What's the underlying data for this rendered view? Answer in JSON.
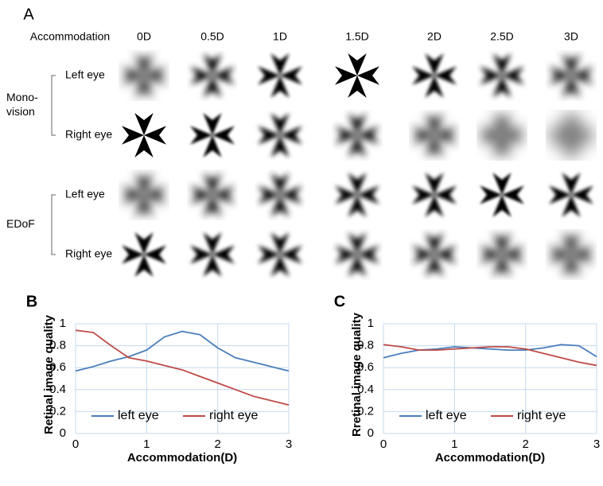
{
  "panel_a": {
    "panel": "A",
    "header": "Accommodation",
    "columns": [
      "0D",
      "0.5D",
      "1D",
      "1.5D",
      "2D",
      "2.5D",
      "3D"
    ],
    "groups": [
      {
        "name": [
          "Mono-",
          "vision"
        ],
        "rows": [
          "Left eye",
          "Right eye"
        ]
      },
      {
        "name": [
          "EDoF"
        ],
        "rows": [
          "Left eye",
          "Right eye"
        ]
      }
    ]
  },
  "chart_data": [
    {
      "type": "line",
      "panel": "B",
      "y_label": "Retinal image quality",
      "x_label": "Accommodation(D)",
      "x": [
        0,
        0.25,
        0.5,
        0.75,
        1,
        1.25,
        1.5,
        1.75,
        2,
        2.25,
        2.5,
        2.75,
        3
      ],
      "series": [
        {
          "name": "left eye",
          "color": "#4a7ebb",
          "values": [
            0.57,
            0.61,
            0.66,
            0.7,
            0.76,
            0.88,
            0.93,
            0.9,
            0.78,
            0.69,
            0.65,
            0.61,
            0.57
          ]
        },
        {
          "name": "right eye",
          "color": "#be4b48",
          "values": [
            0.94,
            0.92,
            0.8,
            0.69,
            0.66,
            0.62,
            0.58,
            0.52,
            0.46,
            0.4,
            0.34,
            0.3,
            0.26
          ]
        }
      ],
      "xlim": [
        0,
        3
      ],
      "xticks": [
        0,
        1,
        2,
        3
      ],
      "ylim": [
        0,
        1
      ],
      "yticks": [
        0,
        0.2,
        0.4,
        0.6,
        0.8,
        1
      ],
      "grid": true,
      "legend": "bottom"
    },
    {
      "type": "line",
      "panel": "C",
      "y_label": "Rretinal image quality",
      "x_label": "Accommodation(D)",
      "x": [
        0,
        0.25,
        0.5,
        0.75,
        1,
        1.25,
        1.5,
        1.75,
        2,
        2.25,
        2.5,
        2.75,
        3
      ],
      "series": [
        {
          "name": "left eye",
          "color": "#4a7ebb",
          "values": [
            0.69,
            0.73,
            0.76,
            0.77,
            0.79,
            0.78,
            0.77,
            0.76,
            0.76,
            0.78,
            0.81,
            0.8,
            0.7
          ]
        },
        {
          "name": "right eye",
          "color": "#be4b48",
          "values": [
            0.81,
            0.79,
            0.76,
            0.76,
            0.77,
            0.78,
            0.79,
            0.79,
            0.77,
            0.73,
            0.69,
            0.65,
            0.62
          ]
        }
      ],
      "xlim": [
        0,
        3
      ],
      "xticks": [
        0,
        1,
        2,
        3
      ],
      "ylim": [
        0,
        1
      ],
      "yticks": [
        0,
        0.2,
        0.4,
        0.6,
        0.8,
        1
      ],
      "grid": true,
      "legend": "bottom"
    }
  ]
}
